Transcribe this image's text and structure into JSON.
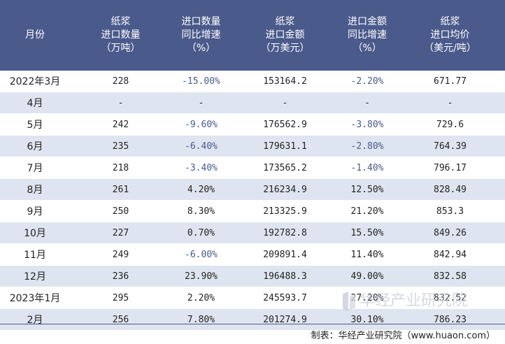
{
  "headers": [
    [
      "月份"
    ],
    [
      "纸浆",
      "进口数量",
      "（万吨）"
    ],
    [
      "进口数量",
      "同比增速",
      "（%）"
    ],
    [
      "纸浆",
      "进口金额",
      "（万美元）"
    ],
    [
      "进口金额",
      "同比增速",
      "（%）"
    ],
    [
      "纸浆",
      "进口均价",
      "（美元/吨）"
    ]
  ],
  "rows": [
    [
      "2022年3月",
      "228",
      "-15.00%",
      "153164.2",
      "-2.20%",
      "671.77"
    ],
    [
      "4月",
      "-",
      "-",
      "-",
      "-",
      "-"
    ],
    [
      "5月",
      "242",
      "-9.60%",
      "176562.9",
      "-3.80%",
      "729.6"
    ],
    [
      "6月",
      "235",
      "-6.40%",
      "179631.1",
      "-2.80%",
      "764.39"
    ],
    [
      "7月",
      "218",
      "-3.40%",
      "173565.2",
      "-1.40%",
      "796.17"
    ],
    [
      "8月",
      "261",
      "4.20%",
      "216234.9",
      "12.50%",
      "828.49"
    ],
    [
      "9月",
      "250",
      "8.30%",
      "213325.9",
      "21.20%",
      "853.3"
    ],
    [
      "10月",
      "227",
      "0.70%",
      "192782.8",
      "15.50%",
      "849.26"
    ],
    [
      "11月",
      "249",
      "-6.00%",
      "209891.4",
      "11.40%",
      "842.94"
    ],
    [
      "12月",
      "236",
      "23.90%",
      "196488.3",
      "49.00%",
      "832.58"
    ],
    [
      "2023年1月",
      "295",
      "2.20%",
      "245593.7",
      "27.20%",
      "832.52"
    ],
    [
      "2月",
      "256",
      "7.80%",
      "201274.9",
      "30.10%",
      "786.23"
    ]
  ],
  "watermark": "华经产业研究院",
  "footer": "制表：华经产业研究院（www.huaon.com）",
  "colors": {
    "header_bg": "#4a5a8b",
    "stripe": "#dfe5f0",
    "negative": "#4a5a8b"
  }
}
